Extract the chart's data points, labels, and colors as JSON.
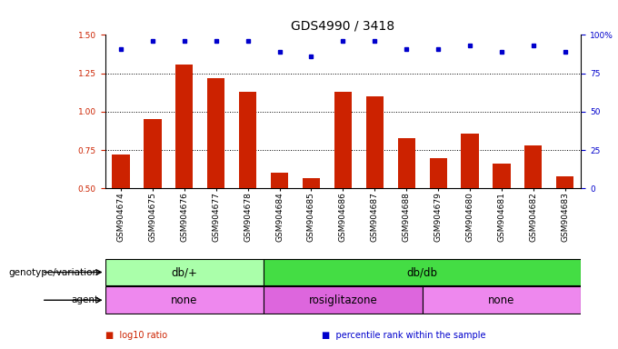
{
  "title": "GDS4990 / 3418",
  "samples": [
    "GSM904674",
    "GSM904675",
    "GSM904676",
    "GSM904677",
    "GSM904678",
    "GSM904684",
    "GSM904685",
    "GSM904686",
    "GSM904687",
    "GSM904688",
    "GSM904679",
    "GSM904680",
    "GSM904681",
    "GSM904682",
    "GSM904683"
  ],
  "bar_values": [
    0.72,
    0.95,
    1.31,
    1.22,
    1.13,
    0.6,
    0.57,
    1.13,
    1.1,
    0.83,
    0.7,
    0.86,
    0.66,
    0.78,
    0.58
  ],
  "blue_dots": [
    1.41,
    1.46,
    1.46,
    1.46,
    1.46,
    1.39,
    1.36,
    1.46,
    1.46,
    1.41,
    1.41,
    1.43,
    1.39,
    1.43,
    1.39
  ],
  "bar_color": "#cc2200",
  "dot_color": "#0000cc",
  "bar_bottom": 0.5,
  "ylim_left": [
    0.5,
    1.5
  ],
  "ylim_right": [
    0,
    100
  ],
  "yticks_left": [
    0.5,
    0.75,
    1.0,
    1.25,
    1.5
  ],
  "yticks_right": [
    0,
    25,
    50,
    75,
    100
  ],
  "ytick_labels_right": [
    "0",
    "25",
    "50",
    "75",
    "100%"
  ],
  "hlines": [
    0.75,
    1.0,
    1.25
  ],
  "genotype_groups": [
    {
      "label": "db/+",
      "start": 0,
      "end": 5,
      "color": "#aaffaa"
    },
    {
      "label": "db/db",
      "start": 5,
      "end": 15,
      "color": "#44dd44"
    }
  ],
  "agent_groups": [
    {
      "label": "none",
      "start": 0,
      "end": 5,
      "color": "#ee88ee"
    },
    {
      "label": "rosiglitazone",
      "start": 5,
      "end": 10,
      "color": "#dd66dd"
    },
    {
      "label": "none",
      "start": 10,
      "end": 15,
      "color": "#ee88ee"
    }
  ],
  "genotype_label": "genotype/variation",
  "agent_label": "agent",
  "legend_items": [
    {
      "color": "#cc2200",
      "label": "log10 ratio"
    },
    {
      "color": "#0000cc",
      "label": "percentile rank within the sample"
    }
  ],
  "title_fontsize": 10,
  "tick_fontsize": 6.5,
  "label_fontsize": 8.5,
  "annotation_label_fontsize": 7.5
}
